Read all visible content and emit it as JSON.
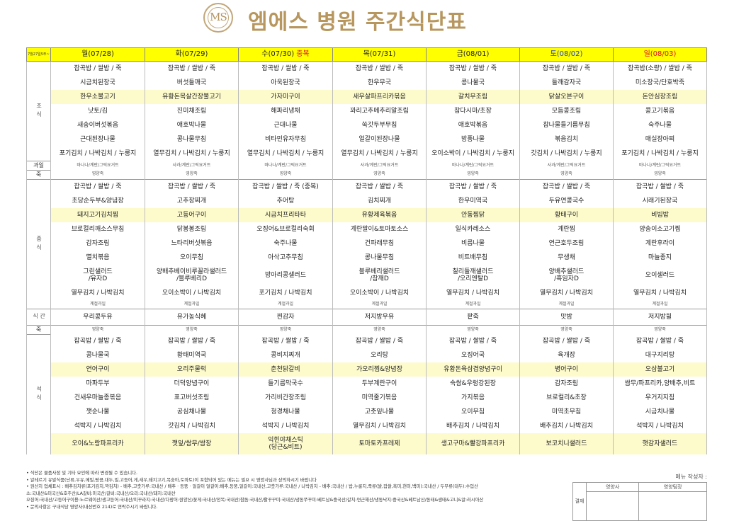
{
  "header": {
    "logo_text": "MS",
    "title": "엠에스 병원 주간식단표"
  },
  "note_tl": "7월27일5주~ 7월28일8월1주",
  "days": [
    {
      "label": "월(07/28)",
      "tag": "",
      "cls": "wkd"
    },
    {
      "label": "화(07/29)",
      "tag": "",
      "cls": "wkd"
    },
    {
      "label": "수(07/30)",
      "tag": "중복",
      "cls": "wkd"
    },
    {
      "label": "목(07/31)",
      "tag": "",
      "cls": "wkd"
    },
    {
      "label": "금(08/01)",
      "tag": "",
      "cls": "wkd"
    },
    {
      "label": "토(08/02)",
      "tag": "",
      "cls": "sat"
    },
    {
      "label": "일(08/03)",
      "tag": "",
      "cls": "sun"
    }
  ],
  "sections": [
    {
      "label": "조식",
      "rows": [
        {
          "cells": [
            "잡곡밥 / 쌀밥 / 죽",
            "잡곡밥 / 쌀밥 / 죽",
            "잡곡밥 / 쌀밥 / 죽",
            "잡곡밥 / 쌀밥 / 죽",
            "잡곡밥 / 쌀밥 / 죽",
            "잡곡밥 / 쌀밥 / 죽",
            "잡곡밥(소량) / 쌀밥 / 죽"
          ]
        },
        {
          "cells": [
            "시금치된장국",
            "버섯들깨국",
            "아욱된장국",
            "한우무국",
            "콩나물국",
            "들깨감자국",
            "미소장국/단호박죽"
          ]
        },
        {
          "hl": true,
          "cells": [
            "한우소불고기",
            "유황돈목살간장불고기",
            "가자미구이",
            "새우살파프리카볶음",
            "갈치무조림",
            "닭살오븐구이",
            "돈안심장조림"
          ]
        },
        {
          "cells": [
            "낫토/김",
            "진미채조림",
            "해파리냉채",
            "꽈리고추메추리알조림",
            "참다시마/초장",
            "모듬콩조림",
            "콩고기볶음"
          ]
        },
        {
          "cells": [
            "새송이버섯볶음",
            "애호박나물",
            "근대나물",
            "쑥갓두부무침",
            "애호박볶음",
            "참나물들기름무침",
            "숙주나물"
          ]
        },
        {
          "cells": [
            "근대된장나물",
            "콩나물무침",
            "비타민유자무침",
            "얼갈이된장나물",
            "방풍나물",
            "볶음김치",
            "매실장아찌"
          ]
        },
        {
          "cells": [
            "포기김치 / 나박김치 / 누룽지",
            "열무김치 / 나박김치 / 누룽지",
            "열무김치 / 나박김치 / 누룽지",
            "열무김치 / 나박김치 / 누룽지",
            "오이소박이 / 나박김치 / 누룽지",
            "갓김치 / 나박김치 / 누룽지",
            "포기김치 / 나박김치 / 누룽지"
          ]
        },
        {
          "small": true,
          "label": "과일",
          "cells": [
            "바나나/계란/그릭요거트",
            "사과/계란/그릭요거트",
            "바나나/계란/그릭요거트",
            "사과/계란/그릭요거트",
            "바나나/계란/그릭요거트",
            "사과/계란/그릭요거트",
            "바나나/계란/그릭요거트"
          ]
        },
        {
          "small": true,
          "label": "죽",
          "cells": [
            "영양죽",
            "영양죽",
            "영양죽",
            "영양죽",
            "영양죽",
            "영양죽",
            "영양죽"
          ]
        }
      ]
    },
    {
      "label": "중식",
      "rows": [
        {
          "cells": [
            "잡곡밥 / 쌀밥 / 죽",
            "잡곡밥 / 쌀밥 / 죽",
            "잡곡밥 / 쌀밥 / 죽 (중복)",
            "잡곡밥 / 쌀밥 / 죽",
            "잡곡밥 / 쌀밥 / 죽",
            "잡곡밥 / 쌀밥 / 죽",
            "잡곡밥 / 쌀밥 / 죽"
          ]
        },
        {
          "cells": [
            "초당순두부&양념장",
            "고추장찌개",
            "추어탕",
            "김치찌개",
            "한우미역국",
            "두유연콩국수",
            "시래기된장국"
          ]
        },
        {
          "hl": true,
          "cells": [
            "돼지고기김치찜",
            "고등어구이",
            "시금치프리타타",
            "유황제육볶음",
            "안동찜닭",
            "황태구이",
            "비빔밥"
          ]
        },
        {
          "cells": [
            "브로컬리깨소스무침",
            "닭봉봉조림",
            "오징어&브로컬리숙회",
            "계란말이&토마토소스",
            "일식카레소스",
            "계란찜",
            "양송이소고기찜"
          ]
        },
        {
          "cells": [
            "감자조림",
            "느타리버섯볶음",
            "숙주나물",
            "건파래무침",
            "비름나물",
            "연근호두조림",
            "계란후라이"
          ]
        },
        {
          "cells": [
            "멸치볶음",
            "오이무침",
            "아삭고추무침",
            "콩나물무침",
            "비트배무침",
            "무생채",
            "마늘종지"
          ]
        },
        {
          "two": true,
          "cells": [
            "그린샐러드\n/유자D",
            "양배추베이비루꼴라샐러드\n/블루베리D",
            "방아리콩샐러드",
            "블루베리샐러드\n/참깨D",
            "칠리들깨샐러드\n/오리엔탈D",
            "양배추샐러드\n/흑임자D",
            "오이샐러드"
          ]
        },
        {
          "cells": [
            "열무김치 / 나박김치",
            "오이소박이 / 나박김치",
            "포기김치 / 나박김치",
            "오이소박이 / 나박김치",
            "열무김치 / 나박김치",
            "열무김치 / 나박김치",
            "열무김치 / 나박김치"
          ]
        },
        {
          "small": true,
          "cells": [
            "계절과일",
            "계절과일",
            "계절과일",
            "계절과일",
            "계절과일",
            "계절과일",
            "계절과일"
          ]
        }
      ]
    },
    {
      "label": "간식",
      "rows": [
        {
          "cells": [
            "우리콩두유",
            "유가농식혜",
            "찐감자",
            "저지방우유",
            "팥죽",
            "맛밤",
            "저지방윌"
          ]
        }
      ]
    },
    {
      "label": "석식",
      "rows": [
        {
          "small": true,
          "label": "죽",
          "cells": [
            "영양죽",
            "영양죽",
            "영양죽",
            "영양죽",
            "영양죽",
            "영양죽",
            "영양죽"
          ]
        },
        {
          "cells": [
            "잡곡밥 / 쌀밥 / 죽",
            "잡곡밥 / 쌀밥 / 죽",
            "잡곡밥 / 쌀밥 / 죽",
            "잡곡밥 / 쌀밥 / 죽",
            "잡곡밥 / 쌀밥 / 죽",
            "잡곡밥 / 쌀밥 / 죽",
            "잡곡밥 / 쌀밥 / 죽"
          ]
        },
        {
          "cells": [
            "콩나물국",
            "황태미역국",
            "콩비지찌개",
            "오리탕",
            "오징어국",
            "육개장",
            "대구지리탕"
          ]
        },
        {
          "hl": true,
          "cells": [
            "연어구이",
            "오리주물럭",
            "춘천닭갈비",
            "가오리찜&양념장",
            "유황돈육삼겹양념구이",
            "병어구이",
            "오삼불고기"
          ]
        },
        {
          "cells": [
            "마파두부",
            "더덕양념구이",
            "들기름막국수",
            "두부계란구이",
            "숙쌈&우렁강된장",
            "감자조림",
            "쌈무/파프리카,양배추,비트"
          ]
        },
        {
          "cells": [
            "건새우마늘종볶음",
            "표고버섯조림",
            "가리비간장조림",
            "미역줄기볶음",
            "가지볶음",
            "브로컬리&초장",
            "우거지지짐"
          ]
        },
        {
          "cells": [
            "깻순나물",
            "공심채나물",
            "청경채나물",
            "고춧잎나물",
            "오이무침",
            "미역초무침",
            "시금치나물"
          ]
        },
        {
          "cells": [
            "석박지 / 나박김치",
            "갓김치 / 나박김치",
            "석박지 / 나박김치",
            "열무김치 / 나박김치",
            "배추김치 / 나박김치",
            "배추김치 / 나박김치",
            "석박지 / 나박김치"
          ]
        },
        {
          "hl": true,
          "two": true,
          "cells": [
            "오이&노랑파프리카",
            "깻잎/쌈무/쌈장",
            "익힌야채스틱\n(당근&비트)",
            "토마토카프레제",
            "생고구마&빨강파프리카",
            "보코치니샐러드",
            "햇감자샐러드"
          ]
        }
      ]
    }
  ],
  "footer": [
    "• 식단은 물품사정 및 기타 요인에 따라 변경될 수 있습니다.",
    "• 알레르기 유발식품(난류,우유,메밀,땅콩,대두,밀,고등어,게,새우,돼지고기,복숭아,토마토)이 포함되어 있는 메뉴는 필요 시 영양사님과 상의하시기 바랍니다",
    "• 원산지 업체표시 : 배추김치류(포기김치,깍김치) - 배추,고춧가루:국내산 / 배추 · 등뚱 · 얼갈이 얼갈이:배추,등뚱,얼갈이:국내산,고춧가루:국내산 / 나박김치 - 배추:국내산 / 밥,누룽지,죽류(쌀,잡쌀,흑미,현미,백미):국내산 / 두부류(대두):수입산",
    "소:국내산&미국산&호주산/LA갈비:미국산/갈비:국내산/오리:국내산/돼지:국내산",
    "오징어:국내산/고등어구이용:노르웨이산/생고등어:국내산/미꾸라지:국내산/다랑어:원양산/꽃게:국내산/전복:국내산/참돔:국내산/활꾸꾸미:국내산/냉동쭈꾸미:베트남&중국산/갈치:연근해산/냉동낙지:중국산&베트남산/동태&생태&고니&알:러시아산",
    "• 문의사항은 구내식당 영양사(내선번호 214)로 연락주시기 바랍니다."
  ],
  "sign": {
    "label": "메뉴 작성자 :",
    "side": "결재",
    "col1": "영양사",
    "col2": "영양팀장"
  }
}
